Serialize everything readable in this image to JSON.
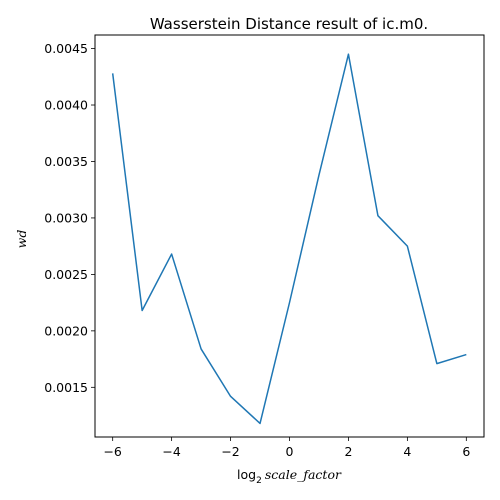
{
  "chart_data": {
    "type": "line",
    "title": "Wasserstein Distance result of ic.m0.",
    "xlabel": {
      "prefix": "log",
      "subscript": "2",
      "italic": "scale_factor"
    },
    "ylabel": "wd",
    "xlim": [
      -6.6,
      6.6
    ],
    "ylim": [
      0.00106,
      0.00462
    ],
    "x_ticks": [
      -6,
      -4,
      -2,
      0,
      2,
      4,
      6
    ],
    "x_tick_labels": [
      "−6",
      "−4",
      "−2",
      "0",
      "2",
      "4",
      "6"
    ],
    "y_ticks": [
      0.0015,
      0.002,
      0.0025,
      0.003,
      0.0035,
      0.004,
      0.0045
    ],
    "y_tick_labels": [
      "0.0015",
      "0.0020",
      "0.0025",
      "0.0030",
      "0.0035",
      "0.0040",
      "0.0045"
    ],
    "grid": false,
    "series": [
      {
        "color": "#1f77b4",
        "x": [
          -6,
          -5,
          -4,
          -3,
          -2,
          -1,
          0,
          1,
          2,
          3,
          4,
          5,
          6
        ],
        "y": [
          0.00428,
          0.00218,
          0.00268,
          0.00184,
          0.00142,
          0.00118,
          0.00225,
          0.00338,
          0.00445,
          0.00302,
          0.00275,
          0.00171,
          0.00179
        ]
      }
    ]
  }
}
